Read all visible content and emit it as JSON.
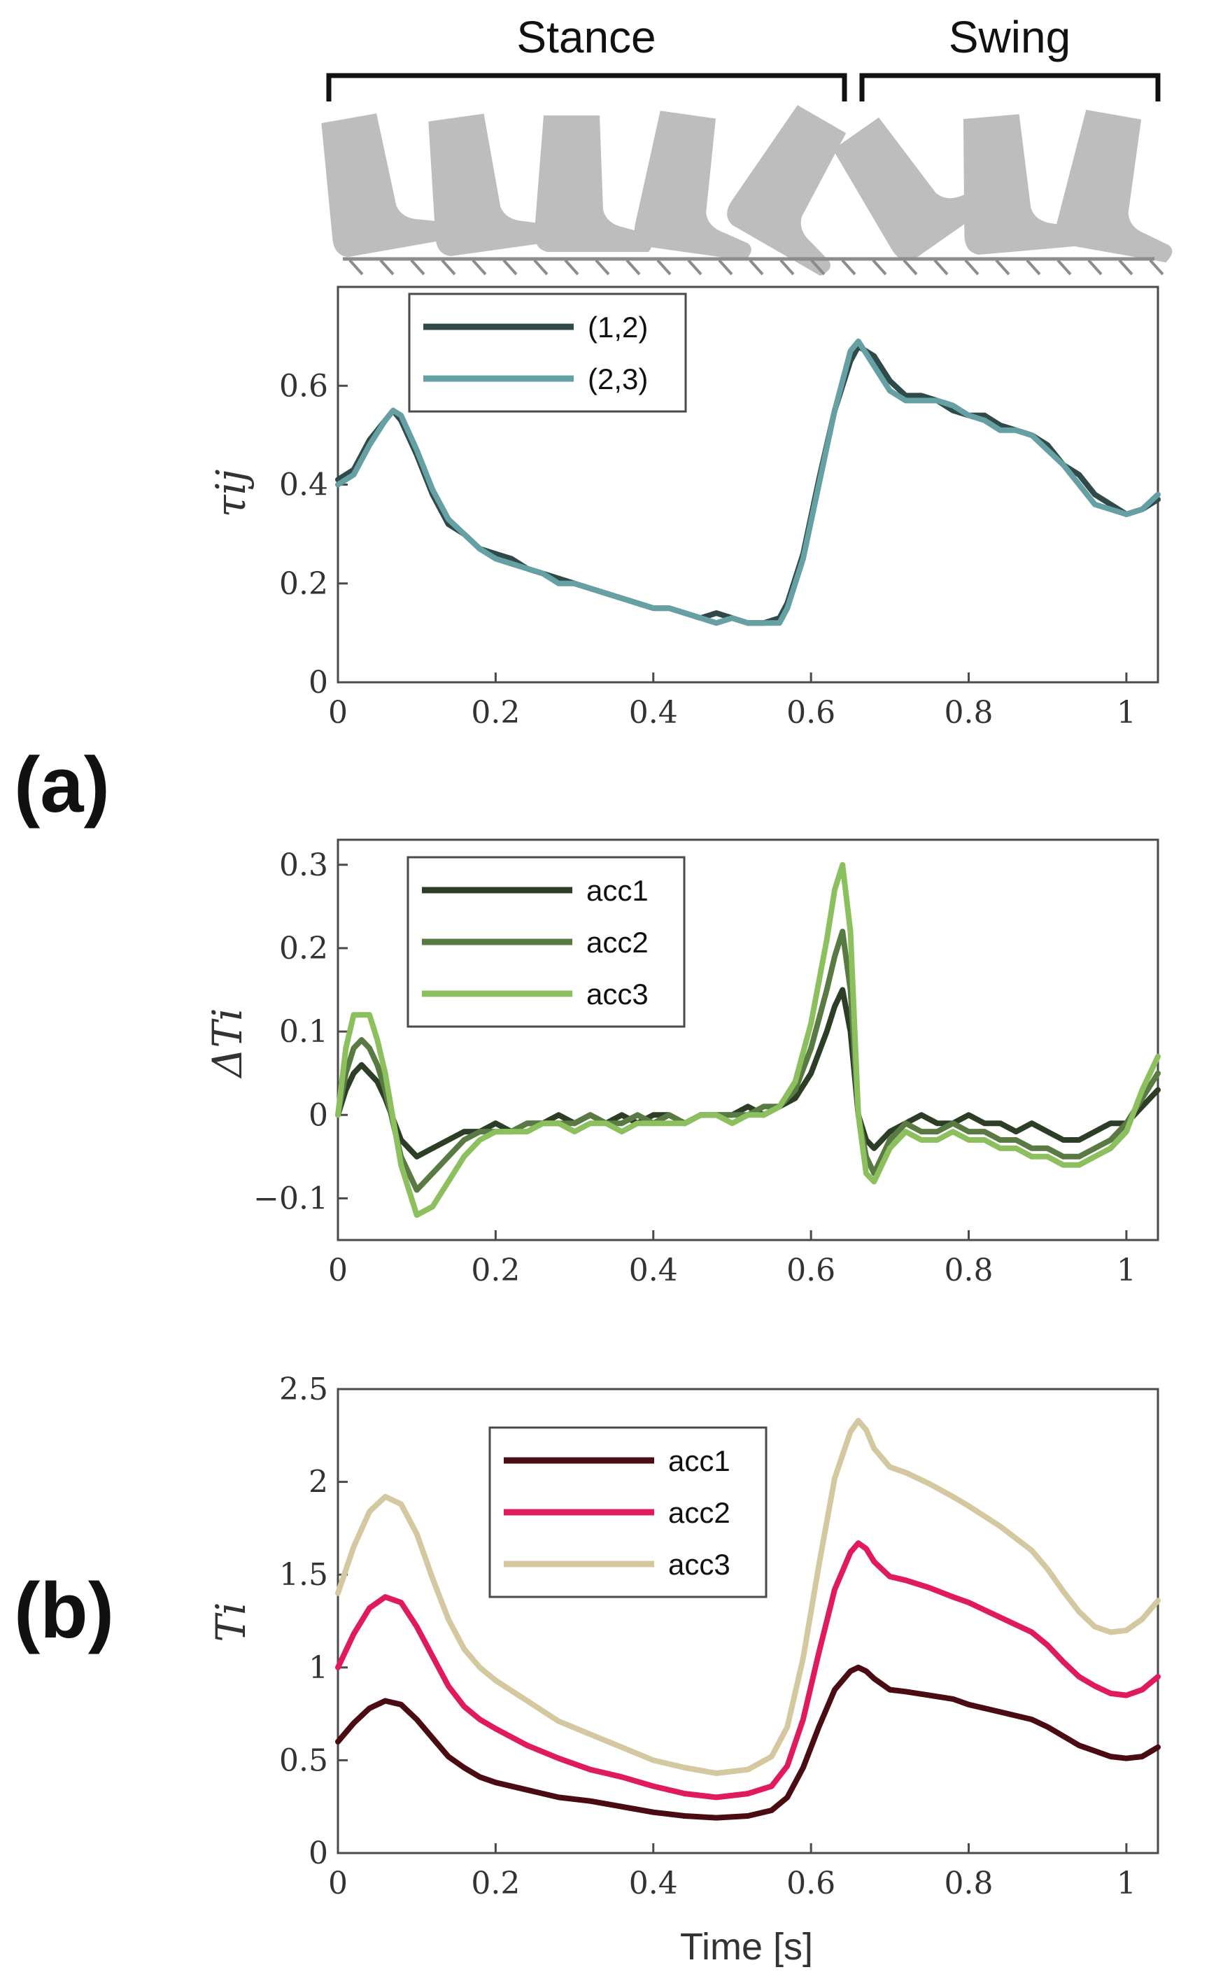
{
  "figure": {
    "phases": [
      {
        "label": "Stance",
        "start": 0.0,
        "end": 0.65
      },
      {
        "label": "Swing",
        "start": 0.665,
        "end": 1.04
      }
    ],
    "panel_labels": [
      "(a)",
      "(b)"
    ],
    "shared_xlabel": "Time [s]",
    "colors": {
      "tau_12": "#2f4a48",
      "tau_23": "#64a0a4",
      "dT_acc1": "#2d3e26",
      "dT_acc2": "#5a7a44",
      "dT_acc3": "#8cc05e",
      "T_acc1": "#4a0c12",
      "T_acc2": "#df1a5e",
      "T_acc3": "#d4c8a0",
      "foot": "#bdbdbd",
      "ground": "#8c8c8c"
    }
  },
  "chart_data": [
    {
      "id": "tau",
      "type": "line",
      "ylabel": "τij",
      "xlabel": "",
      "xlim": [
        0,
        1.04
      ],
      "ylim": [
        0,
        0.8
      ],
      "xticks": [
        0,
        0.2,
        0.4,
        0.6,
        0.8,
        1
      ],
      "xtick_labels": [
        "0",
        "0.2",
        "0.4",
        "0.6",
        "0.8",
        "1"
      ],
      "yticks": [
        0,
        0.2,
        0.4,
        0.6
      ],
      "ytick_labels": [
        "0",
        "0.2",
        "0.4",
        "0.6"
      ],
      "legend_position": "top-left",
      "x": [
        0,
        0.02,
        0.04,
        0.06,
        0.07,
        0.08,
        0.1,
        0.12,
        0.14,
        0.16,
        0.18,
        0.2,
        0.22,
        0.24,
        0.26,
        0.28,
        0.3,
        0.32,
        0.34,
        0.36,
        0.38,
        0.4,
        0.42,
        0.44,
        0.46,
        0.48,
        0.5,
        0.52,
        0.54,
        0.56,
        0.57,
        0.59,
        0.61,
        0.63,
        0.65,
        0.66,
        0.68,
        0.7,
        0.72,
        0.74,
        0.76,
        0.78,
        0.8,
        0.82,
        0.84,
        0.86,
        0.88,
        0.9,
        0.92,
        0.94,
        0.96,
        0.98,
        1.0,
        1.02,
        1.04
      ],
      "series": [
        {
          "name": "(1,2)",
          "color_key": "tau_12",
          "values": [
            0.41,
            0.43,
            0.49,
            0.53,
            0.55,
            0.53,
            0.46,
            0.38,
            0.32,
            0.3,
            0.27,
            0.26,
            0.25,
            0.23,
            0.22,
            0.21,
            0.2,
            0.19,
            0.18,
            0.17,
            0.16,
            0.15,
            0.15,
            0.14,
            0.13,
            0.14,
            0.13,
            0.12,
            0.12,
            0.13,
            0.16,
            0.26,
            0.41,
            0.55,
            0.65,
            0.68,
            0.66,
            0.61,
            0.58,
            0.58,
            0.57,
            0.55,
            0.54,
            0.54,
            0.52,
            0.51,
            0.5,
            0.48,
            0.44,
            0.42,
            0.38,
            0.36,
            0.34,
            0.35,
            0.37
          ]
        },
        {
          "name": "(2,3)",
          "color_key": "tau_23",
          "values": [
            0.4,
            0.42,
            0.48,
            0.53,
            0.55,
            0.54,
            0.47,
            0.39,
            0.33,
            0.3,
            0.27,
            0.25,
            0.24,
            0.23,
            0.22,
            0.2,
            0.2,
            0.19,
            0.18,
            0.17,
            0.16,
            0.15,
            0.15,
            0.14,
            0.13,
            0.12,
            0.13,
            0.12,
            0.12,
            0.12,
            0.15,
            0.25,
            0.4,
            0.55,
            0.67,
            0.69,
            0.64,
            0.59,
            0.57,
            0.57,
            0.57,
            0.56,
            0.54,
            0.53,
            0.51,
            0.51,
            0.5,
            0.47,
            0.44,
            0.4,
            0.36,
            0.35,
            0.34,
            0.35,
            0.38
          ]
        }
      ]
    },
    {
      "id": "deltaT",
      "type": "line",
      "ylabel": "ΔTi",
      "xlabel": "",
      "xlim": [
        0,
        1.04
      ],
      "ylim": [
        -0.15,
        0.33
      ],
      "xticks": [
        0,
        0.2,
        0.4,
        0.6,
        0.8,
        1
      ],
      "xtick_labels": [
        "0",
        "0.2",
        "0.4",
        "0.6",
        "0.8",
        "1"
      ],
      "yticks": [
        -0.1,
        0,
        0.1,
        0.2,
        0.3
      ],
      "ytick_labels": [
        "−0.1",
        "0",
        "0.1",
        "0.2",
        "0.3"
      ],
      "legend_position": "top-left",
      "x": [
        0,
        0.01,
        0.02,
        0.03,
        0.04,
        0.05,
        0.06,
        0.08,
        0.1,
        0.12,
        0.14,
        0.16,
        0.18,
        0.2,
        0.22,
        0.24,
        0.26,
        0.28,
        0.3,
        0.32,
        0.34,
        0.36,
        0.38,
        0.4,
        0.42,
        0.44,
        0.46,
        0.48,
        0.5,
        0.52,
        0.54,
        0.56,
        0.58,
        0.6,
        0.62,
        0.63,
        0.64,
        0.65,
        0.66,
        0.67,
        0.68,
        0.7,
        0.72,
        0.74,
        0.76,
        0.78,
        0.8,
        0.82,
        0.84,
        0.86,
        0.88,
        0.9,
        0.92,
        0.94,
        0.96,
        0.98,
        1.0,
        1.02,
        1.04
      ],
      "series": [
        {
          "name": "acc1",
          "color_key": "dT_acc1",
          "values": [
            0.0,
            0.03,
            0.05,
            0.06,
            0.05,
            0.04,
            0.02,
            -0.03,
            -0.05,
            -0.04,
            -0.03,
            -0.02,
            -0.02,
            -0.01,
            -0.02,
            -0.01,
            -0.01,
            0.0,
            -0.01,
            0.0,
            -0.01,
            0.0,
            -0.01,
            0.0,
            0.0,
            -0.01,
            0.0,
            0.0,
            0.0,
            0.01,
            0.0,
            0.01,
            0.02,
            0.05,
            0.1,
            0.13,
            0.15,
            0.1,
            0.0,
            -0.03,
            -0.04,
            -0.02,
            -0.01,
            0.0,
            -0.01,
            -0.01,
            0.0,
            -0.01,
            -0.01,
            -0.02,
            -0.01,
            -0.02,
            -0.03,
            -0.03,
            -0.02,
            -0.01,
            -0.01,
            0.01,
            0.03
          ]
        },
        {
          "name": "acc2",
          "color_key": "dT_acc2",
          "values": [
            0.0,
            0.05,
            0.08,
            0.09,
            0.08,
            0.06,
            0.03,
            -0.05,
            -0.09,
            -0.07,
            -0.05,
            -0.03,
            -0.02,
            -0.02,
            -0.02,
            -0.01,
            -0.01,
            -0.01,
            -0.01,
            0.0,
            -0.01,
            -0.01,
            0.0,
            -0.01,
            0.0,
            -0.01,
            0.0,
            0.0,
            0.0,
            0.0,
            0.01,
            0.01,
            0.03,
            0.08,
            0.15,
            0.19,
            0.22,
            0.15,
            0.0,
            -0.05,
            -0.07,
            -0.03,
            -0.01,
            -0.02,
            -0.02,
            -0.01,
            -0.02,
            -0.02,
            -0.03,
            -0.03,
            -0.04,
            -0.04,
            -0.05,
            -0.05,
            -0.04,
            -0.03,
            -0.01,
            0.02,
            0.05
          ]
        },
        {
          "name": "acc3",
          "color_key": "dT_acc3",
          "values": [
            0.0,
            0.08,
            0.12,
            0.12,
            0.12,
            0.09,
            0.05,
            -0.06,
            -0.12,
            -0.11,
            -0.08,
            -0.05,
            -0.03,
            -0.02,
            -0.02,
            -0.02,
            -0.01,
            -0.01,
            -0.02,
            -0.01,
            -0.01,
            -0.02,
            -0.01,
            -0.01,
            -0.01,
            -0.01,
            0.0,
            0.0,
            -0.01,
            0.0,
            0.0,
            0.01,
            0.04,
            0.11,
            0.21,
            0.27,
            0.3,
            0.22,
            0.0,
            -0.07,
            -0.08,
            -0.04,
            -0.02,
            -0.03,
            -0.03,
            -0.02,
            -0.03,
            -0.03,
            -0.04,
            -0.04,
            -0.05,
            -0.05,
            -0.06,
            -0.06,
            -0.05,
            -0.04,
            -0.02,
            0.03,
            0.07
          ]
        }
      ]
    },
    {
      "id": "T",
      "type": "line",
      "ylabel": "Ti",
      "xlabel": "Time [s]",
      "xlim": [
        0,
        1.04
      ],
      "ylim": [
        0,
        2.5
      ],
      "xticks": [
        0,
        0.2,
        0.4,
        0.6,
        0.8,
        1
      ],
      "xtick_labels": [
        "0",
        "0.2",
        "0.4",
        "0.6",
        "0.8",
        "1"
      ],
      "yticks": [
        0,
        0.5,
        1,
        1.5,
        2,
        2.5
      ],
      "ytick_labels": [
        "0",
        "0.5",
        "1",
        "1.5",
        "2",
        "2.5"
      ],
      "legend_position": "top-center",
      "x": [
        0,
        0.02,
        0.04,
        0.06,
        0.08,
        0.1,
        0.12,
        0.14,
        0.16,
        0.18,
        0.2,
        0.24,
        0.28,
        0.32,
        0.36,
        0.4,
        0.44,
        0.48,
        0.52,
        0.55,
        0.57,
        0.59,
        0.61,
        0.63,
        0.65,
        0.66,
        0.67,
        0.68,
        0.7,
        0.72,
        0.75,
        0.78,
        0.8,
        0.84,
        0.88,
        0.9,
        0.92,
        0.94,
        0.96,
        0.98,
        1.0,
        1.02,
        1.04
      ],
      "series": [
        {
          "name": "acc1",
          "color_key": "T_acc1",
          "values": [
            0.6,
            0.7,
            0.78,
            0.82,
            0.8,
            0.72,
            0.62,
            0.52,
            0.46,
            0.41,
            0.38,
            0.34,
            0.3,
            0.28,
            0.25,
            0.22,
            0.2,
            0.19,
            0.2,
            0.23,
            0.3,
            0.46,
            0.68,
            0.88,
            0.98,
            1.0,
            0.98,
            0.94,
            0.88,
            0.87,
            0.85,
            0.83,
            0.8,
            0.76,
            0.72,
            0.68,
            0.63,
            0.58,
            0.55,
            0.52,
            0.51,
            0.52,
            0.57
          ]
        },
        {
          "name": "acc2",
          "color_key": "T_acc2",
          "values": [
            1.0,
            1.18,
            1.32,
            1.38,
            1.35,
            1.22,
            1.06,
            0.9,
            0.79,
            0.72,
            0.67,
            0.58,
            0.51,
            0.45,
            0.41,
            0.36,
            0.32,
            0.3,
            0.32,
            0.36,
            0.47,
            0.72,
            1.08,
            1.42,
            1.62,
            1.67,
            1.64,
            1.57,
            1.49,
            1.47,
            1.43,
            1.38,
            1.35,
            1.27,
            1.19,
            1.12,
            1.03,
            0.95,
            0.9,
            0.86,
            0.85,
            0.88,
            0.95
          ]
        },
        {
          "name": "acc3",
          "color_key": "T_acc3",
          "values": [
            1.4,
            1.65,
            1.84,
            1.92,
            1.88,
            1.72,
            1.48,
            1.26,
            1.1,
            1.0,
            0.93,
            0.82,
            0.71,
            0.64,
            0.57,
            0.5,
            0.46,
            0.43,
            0.45,
            0.52,
            0.68,
            1.05,
            1.55,
            2.02,
            2.27,
            2.33,
            2.28,
            2.18,
            2.08,
            2.05,
            1.99,
            1.92,
            1.87,
            1.76,
            1.63,
            1.53,
            1.41,
            1.3,
            1.22,
            1.19,
            1.2,
            1.26,
            1.36
          ]
        }
      ]
    }
  ]
}
